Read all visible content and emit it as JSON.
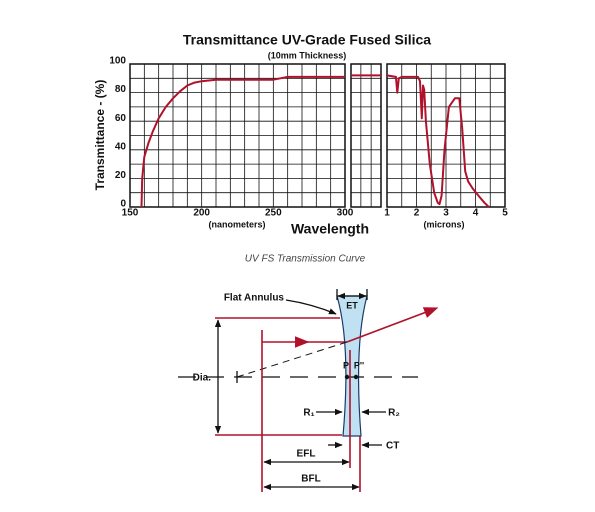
{
  "chart_data": [
    {
      "type": "line",
      "title": "Transmittance UV-Grade Fused Silica",
      "subtitle": "(10mm Thickness)",
      "y_label": "Transmittance - (%)",
      "x_label": "Wavelength",
      "x_unit": "(nanometers)",
      "color": "#b0122c",
      "grid": true,
      "xlim": [
        150,
        300
      ],
      "xticks": [
        150,
        200,
        250,
        300
      ],
      "xgrid": [
        150,
        160,
        170,
        180,
        190,
        200,
        210,
        220,
        230,
        240,
        250,
        260,
        270,
        280,
        290,
        300
      ],
      "ylim": [
        0,
        100
      ],
      "yticks": [
        0,
        20,
        40,
        60,
        80,
        100
      ],
      "ygrid": [
        0,
        10,
        20,
        30,
        40,
        50,
        60,
        70,
        80,
        90,
        100
      ],
      "x": [
        158,
        158.5,
        160,
        163,
        166,
        170,
        175,
        180,
        185,
        190,
        195,
        200,
        210,
        220,
        250,
        255,
        260,
        280,
        300
      ],
      "values": [
        0,
        20,
        35,
        45,
        53,
        62,
        70,
        76,
        81,
        85,
        87,
        88,
        89,
        89,
        89,
        90,
        91,
        91,
        91
      ]
    },
    {
      "type": "line",
      "color": "#b0122c",
      "grid": true,
      "xlim": [
        300,
        1000
      ],
      "xgrid": [
        300,
        530,
        770,
        1000
      ],
      "x": [
        300,
        1000
      ],
      "values": [
        92,
        92
      ]
    },
    {
      "type": "line",
      "x_unit": "(microns)",
      "color": "#b0122c",
      "grid": true,
      "xlim": [
        1,
        5
      ],
      "xticks": [
        1,
        2,
        3,
        4,
        5
      ],
      "xgrid": [
        1,
        1.5,
        2,
        2.5,
        3,
        3.5,
        4,
        4.5,
        5
      ],
      "x": [
        1.0,
        1.3,
        1.35,
        1.4,
        1.5,
        2.05,
        2.12,
        2.18,
        2.22,
        2.26,
        2.32,
        2.45,
        2.6,
        2.72,
        2.78,
        2.85,
        2.95,
        3.1,
        3.3,
        3.45,
        3.55,
        3.65,
        3.75,
        3.9,
        4.1,
        4.3,
        4.45
      ],
      "values": [
        92,
        91,
        80,
        90,
        91,
        91,
        88,
        62,
        85,
        82,
        60,
        30,
        10,
        3,
        2,
        8,
        40,
        70,
        76,
        76,
        55,
        25,
        18,
        13,
        8,
        3,
        0
      ]
    }
  ],
  "caption": "UV FS Transmission Curve",
  "diagram": {
    "flat_annulus": "Flat Annulus",
    "et": "ET",
    "dia": "Dia.",
    "p": "P",
    "p2": "P''",
    "r1": "R₁",
    "r2": "R₂",
    "ct": "CT",
    "efl": "EFL",
    "bfl": "BFL"
  }
}
